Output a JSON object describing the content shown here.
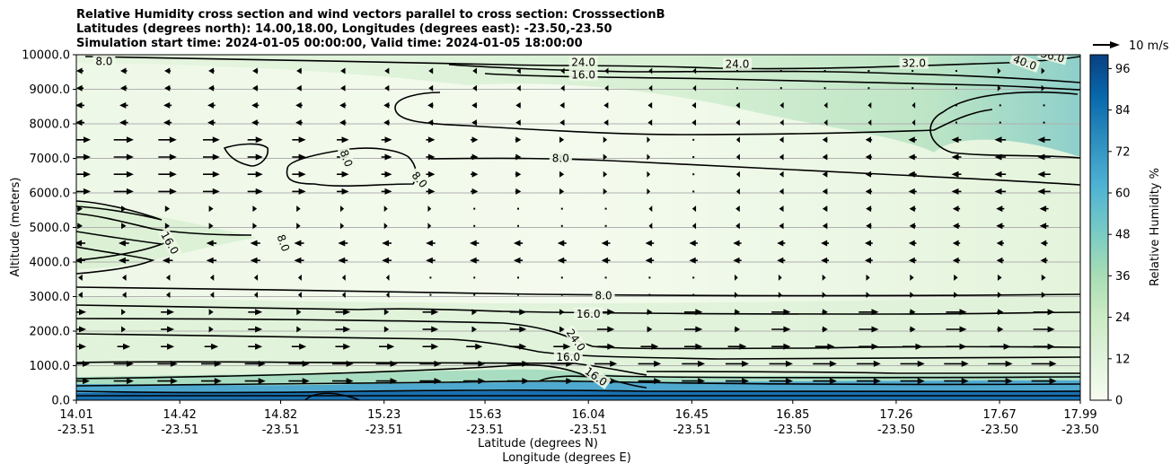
{
  "title_lines": [
    "Relative Humidity cross section and wind vectors parallel to cross section: CrosssectionB",
    "Latitudes (degrees north): 14.00,18.00, Longitudes (degrees east): -23.50,-23.50",
    "Simulation start time: 2024-01-05 00:00:00, Valid time: 2024-01-05 18:00:00"
  ],
  "chart_data": {
    "type": "contour",
    "ylabel": "Altitude (meters)",
    "xlabel_lat": "Latitude (degrees N)",
    "xlabel_lon": "Longitude (degrees E)",
    "ylim": [
      0,
      10000
    ],
    "yticks": [
      "0.0",
      "1000.0",
      "2000.0",
      "3000.0",
      "4000.0",
      "5000.0",
      "6000.0",
      "7000.0",
      "8000.0",
      "9000.0",
      "10000.0"
    ],
    "xticks_lat": [
      "14.01",
      "14.42",
      "14.82",
      "15.23",
      "15.63",
      "16.04",
      "16.45",
      "16.85",
      "17.26",
      "17.67",
      "17.99"
    ],
    "xticks_lon": [
      "-23.51",
      "-23.51",
      "-23.51",
      "-23.51",
      "-23.51",
      "-23.51",
      "-23.51",
      "-23.50",
      "-23.50",
      "-23.50",
      "-23.50"
    ],
    "colorbar": {
      "label": "Relative Humidity %",
      "ticks": [
        "0",
        "12",
        "24",
        "36",
        "48",
        "60",
        "72",
        "84",
        "96"
      ],
      "range": [
        0,
        100
      ]
    },
    "quiver_key": "10 m/s",
    "contour_labels": [
      {
        "text": "8.0",
        "alt": 9800,
        "lat": 14.12,
        "rot": 0
      },
      {
        "text": "24.0",
        "alt": 9780,
        "lat": 16.02,
        "rot": 0
      },
      {
        "text": "24.0",
        "alt": 9730,
        "lat": 16.63,
        "rot": 0
      },
      {
        "text": "32.0",
        "alt": 9750,
        "lat": 17.33,
        "rot": 0
      },
      {
        "text": "40.0",
        "alt": 9770,
        "lat": 17.77,
        "rot": 20
      },
      {
        "text": "56.0",
        "alt": 9960,
        "lat": 17.88,
        "rot": 15
      },
      {
        "text": "16.0",
        "alt": 9410,
        "lat": 16.02,
        "rot": 0
      },
      {
        "text": "8.0",
        "alt": 7000,
        "lat": 15.08,
        "rot": 70
      },
      {
        "text": "8.0",
        "alt": 6380,
        "lat": 15.37,
        "rot": 50
      },
      {
        "text": "8.0",
        "alt": 7000,
        "lat": 15.93,
        "rot": 0
      },
      {
        "text": "16.0",
        "alt": 4550,
        "lat": 14.38,
        "rot": 60
      },
      {
        "text": "8.0",
        "alt": 4550,
        "lat": 14.83,
        "rot": 70
      },
      {
        "text": "8.0",
        "alt": 3020,
        "lat": 16.1,
        "rot": 0
      },
      {
        "text": "16.0",
        "alt": 2500,
        "lat": 16.04,
        "rot": 0
      },
      {
        "text": "24.0",
        "alt": 1740,
        "lat": 15.99,
        "rot": 55
      },
      {
        "text": "16.0",
        "alt": 1250,
        "lat": 15.96,
        "rot": 0
      },
      {
        "text": "16.0",
        "alt": 680,
        "lat": 16.07,
        "rot": 35
      }
    ],
    "colors": {
      "rh_low": "#f7fcf0",
      "rh_mid": "#b8e3be",
      "rh_high": "#084081",
      "contour": "#000000",
      "gridline": "#b0b0b0"
    }
  }
}
